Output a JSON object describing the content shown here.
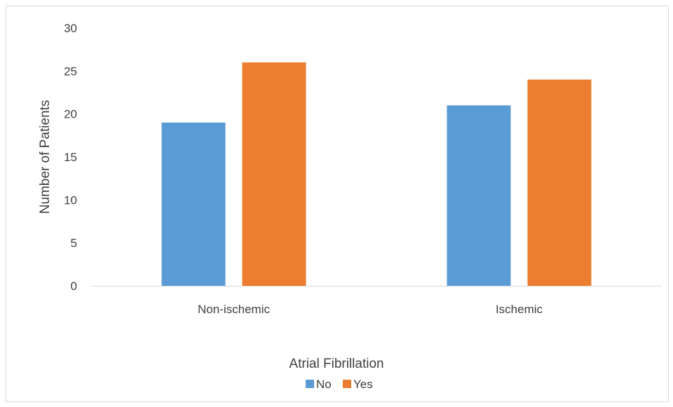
{
  "chart_data": {
    "type": "bar",
    "categories": [
      "Non-ischemic",
      "Ischemic"
    ],
    "series": [
      {
        "name": "No",
        "values": [
          19,
          21
        ],
        "color": "#5b9bd5"
      },
      {
        "name": "Yes",
        "values": [
          26,
          24
        ],
        "color": "#ed7d31"
      }
    ],
    "ylim": [
      0,
      30
    ],
    "yticks": [
      0,
      5,
      10,
      15,
      20,
      25,
      30
    ],
    "xlabel": "",
    "ylabel": "Number of Patients",
    "legend_title": "Atrial Fibrillation",
    "legend_position": "bottom",
    "grid": false
  }
}
